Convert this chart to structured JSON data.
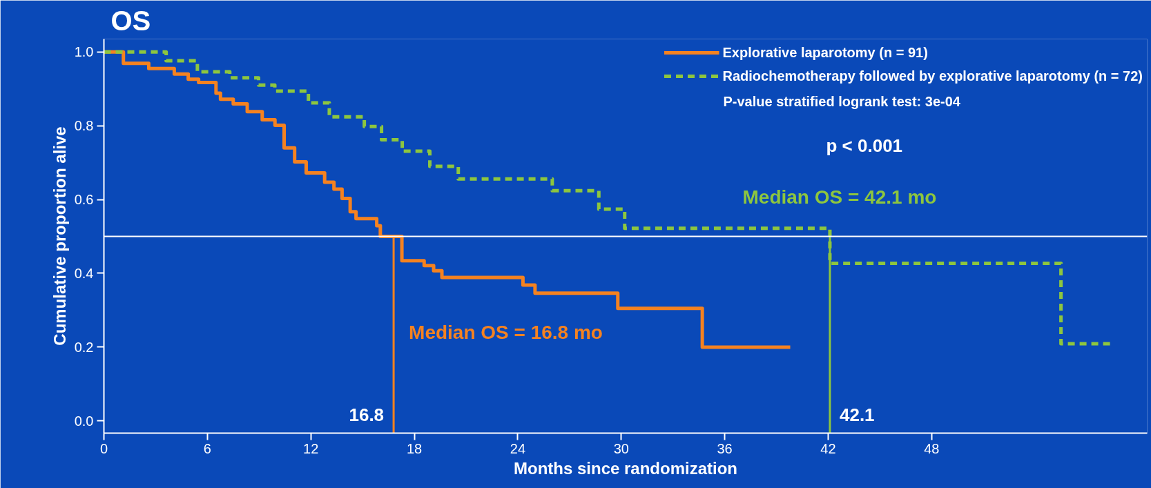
{
  "chart_data": {
    "type": "step",
    "title": "OS",
    "xlabel": "Months since randomization",
    "ylabel": "Cumulative proportion alive",
    "xlim": [
      0,
      60.5
    ],
    "ylim": [
      -0.033,
      1.035
    ],
    "xticks": [
      0,
      6,
      12,
      18,
      24,
      30,
      36,
      42,
      48
    ],
    "yticks": [
      {
        "value": 0,
        "label": "0.0"
      },
      {
        "value": 0.2,
        "label": "0.2"
      },
      {
        "value": 0.4,
        "label": "0.4"
      },
      {
        "value": 0.6,
        "label": "0.6"
      },
      {
        "value": 0.8,
        "label": "0.8"
      },
      {
        "value": 1,
        "label": "1.0"
      }
    ],
    "grid": false,
    "legend": "top right",
    "series": [
      {
        "name": "Explorative laparotomy (n = 91)",
        "color": "#f58220",
        "line_style": "solid",
        "x": [
          0,
          1.13,
          2.6,
          4.08,
          4.89,
          5.49,
          6.5,
          6.76,
          7.5,
          8.31,
          9.18,
          9.92,
          10.45,
          11.06,
          11.73,
          12.8,
          13.34,
          13.81,
          14.28,
          14.62,
          15.82,
          16.03,
          17.28,
          18.57,
          19.12,
          19.6,
          24.3,
          25.0,
          29.8,
          34.7,
          39.8
        ],
        "values": [
          1.0,
          0.969,
          0.955,
          0.94,
          0.926,
          0.917,
          0.888,
          0.872,
          0.859,
          0.838,
          0.816,
          0.801,
          0.74,
          0.702,
          0.672,
          0.647,
          0.628,
          0.603,
          0.567,
          0.548,
          0.529,
          0.5,
          0.434,
          0.421,
          0.407,
          0.389,
          0.368,
          0.346,
          0.305,
          0.2,
          0.2
        ]
      },
      {
        "name": "Radiochemotherapy followed by explorative laparotomy (n = 72)",
        "color": "#8dc63f",
        "line_style": "dashed",
        "x": [
          0,
          3.61,
          5.42,
          7.3,
          8.97,
          9.91,
          11.86,
          13.07,
          15.1,
          16.1,
          17.3,
          18.9,
          20.55,
          26.0,
          28.7,
          30.2,
          42.1,
          55.5,
          58.5
        ],
        "values": [
          1.0,
          0.976,
          0.946,
          0.93,
          0.91,
          0.894,
          0.862,
          0.824,
          0.798,
          0.762,
          0.731,
          0.69,
          0.656,
          0.624,
          0.574,
          0.522,
          0.427,
          0.209,
          0.209
        ]
      }
    ],
    "ref_lines": [
      {
        "axis": "y",
        "value": 0.5,
        "color": "#ffffff"
      },
      {
        "axis": "x",
        "value": 16.8,
        "label": "16.8",
        "color": "#f58220"
      },
      {
        "axis": "x",
        "value": 42.1,
        "label": "42.1",
        "color": "#8dc63f"
      }
    ],
    "annotations": [
      "P-value stratified logrank test: 3e-04",
      "p < 0.001",
      {
        "text": "Median OS = 16.8 mo",
        "x": 16.8,
        "y": 0.24
      },
      "Median OS = 42.1 mo"
    ]
  }
}
